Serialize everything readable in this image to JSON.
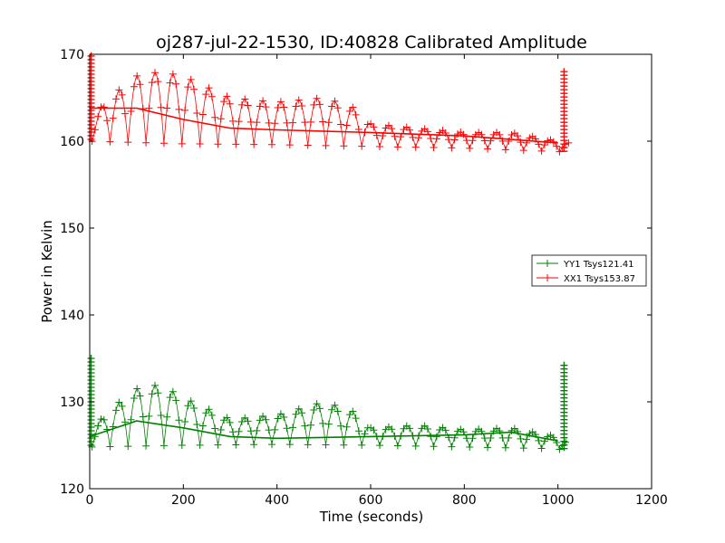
{
  "chart_data": {
    "type": "line",
    "title": "oj287-jul-22-1530, ID:40828 Calibrated Amplitude",
    "xlabel": "Time (seconds)",
    "ylabel": "Power in Kelvin",
    "xlim": [
      0,
      1200
    ],
    "ylim": [
      120,
      170
    ],
    "xticks": [
      "0",
      "200",
      "400",
      "600",
      "800",
      "1000",
      "1200"
    ],
    "yticks": [
      "120",
      "130",
      "140",
      "150",
      "160",
      "170"
    ],
    "legend_position": "right",
    "grid": false,
    "marker": "+",
    "series": [
      {
        "name": "YY1 Tsys121.41",
        "color": "#008000",
        "baseline": [
          [
            0,
            124.8
          ],
          [
            200,
            125.0
          ],
          [
            400,
            125.1
          ],
          [
            600,
            125.0
          ],
          [
            800,
            124.8
          ],
          [
            1000,
            124.6
          ],
          [
            1020,
            124.2
          ]
        ],
        "envelope_top": [
          [
            0,
            126.5
          ],
          [
            40,
            129.0
          ],
          [
            100,
            131.5
          ],
          [
            150,
            132.0
          ],
          [
            200,
            130.5
          ],
          [
            300,
            128.0
          ],
          [
            400,
            128.5
          ],
          [
            500,
            130.0
          ],
          [
            560,
            129.0
          ],
          [
            600,
            127.0
          ],
          [
            700,
            127.3
          ],
          [
            800,
            126.8
          ],
          [
            900,
            127.0
          ],
          [
            1000,
            126.0
          ],
          [
            1010,
            125.5
          ]
        ],
        "smooth_mid": [
          [
            0,
            126.0
          ],
          [
            100,
            127.8
          ],
          [
            200,
            127.0
          ],
          [
            300,
            126.0
          ],
          [
            400,
            125.8
          ],
          [
            600,
            126.0
          ],
          [
            800,
            126.2
          ],
          [
            900,
            126.5
          ],
          [
            1000,
            125.5
          ]
        ],
        "spikes": [
          [
            3,
            135.0
          ],
          [
            1013,
            134.2
          ]
        ]
      },
      {
        "name": "XX1 Tsys153.87",
        "color": "#ff0000",
        "baseline": [
          [
            0,
            160.0
          ],
          [
            200,
            159.7
          ],
          [
            400,
            159.6
          ],
          [
            600,
            159.4
          ],
          [
            800,
            159.2
          ],
          [
            1000,
            158.8
          ],
          [
            1025,
            158.7
          ]
        ],
        "envelope_top": [
          [
            0,
            161.5
          ],
          [
            30,
            164.5
          ],
          [
            100,
            167.5
          ],
          [
            150,
            168.0
          ],
          [
            200,
            167.5
          ],
          [
            300,
            165.0
          ],
          [
            400,
            164.5
          ],
          [
            500,
            165.0
          ],
          [
            560,
            164.0
          ],
          [
            600,
            162.0
          ],
          [
            700,
            161.5
          ],
          [
            800,
            161.0
          ],
          [
            900,
            161.0
          ],
          [
            1000,
            160.0
          ],
          [
            1010,
            159.8
          ]
        ],
        "smooth_mid": [
          [
            0,
            163.8
          ],
          [
            100,
            163.8
          ],
          [
            200,
            162.5
          ],
          [
            300,
            161.5
          ],
          [
            400,
            161.3
          ],
          [
            600,
            161.0
          ],
          [
            800,
            160.6
          ],
          [
            1000,
            159.8
          ]
        ],
        "spikes": [
          [
            3,
            169.8
          ],
          [
            1013,
            168.0
          ]
        ]
      }
    ]
  }
}
